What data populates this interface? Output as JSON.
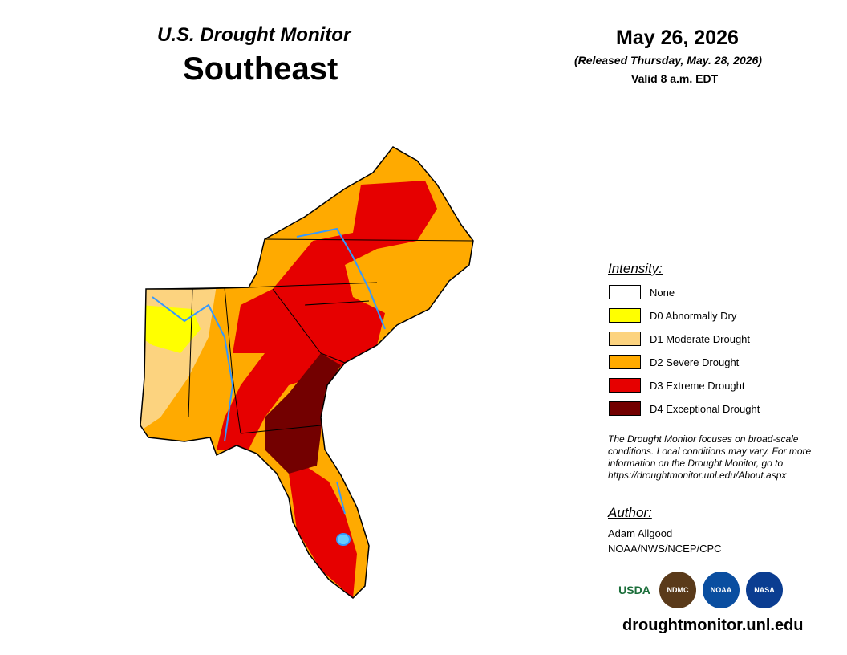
{
  "header": {
    "title": "U.S. Drought Monitor",
    "region": "Southeast",
    "date": "May 26, 2026",
    "released": "(Released Thursday, May. 28, 2026)",
    "valid": "Valid 8 a.m. EDT"
  },
  "legend": {
    "title": "Intensity:",
    "items": [
      {
        "label": "None",
        "color": "#ffffff"
      },
      {
        "label": "D0 Abnormally Dry",
        "color": "#ffff00"
      },
      {
        "label": "D1 Moderate Drought",
        "color": "#fcd37f"
      },
      {
        "label": "D2 Severe Drought",
        "color": "#ffaa00"
      },
      {
        "label": "D3 Extreme Drought",
        "color": "#e60000"
      },
      {
        "label": "D4 Exceptional Drought",
        "color": "#730000"
      }
    ]
  },
  "note": "The Drought Monitor focuses on broad-scale conditions. Local conditions may vary. For more information on the Drought Monitor, go to https://droughtmonitor.unl.edu/About.aspx",
  "author": {
    "heading": "Author:",
    "name": "Adam Allgood",
    "org": "NOAA/NWS/NCEP/CPC"
  },
  "logos": [
    "USDA",
    "NDMC",
    "NOAA",
    "NASA"
  ],
  "url": "droughtmonitor.unl.edu"
}
